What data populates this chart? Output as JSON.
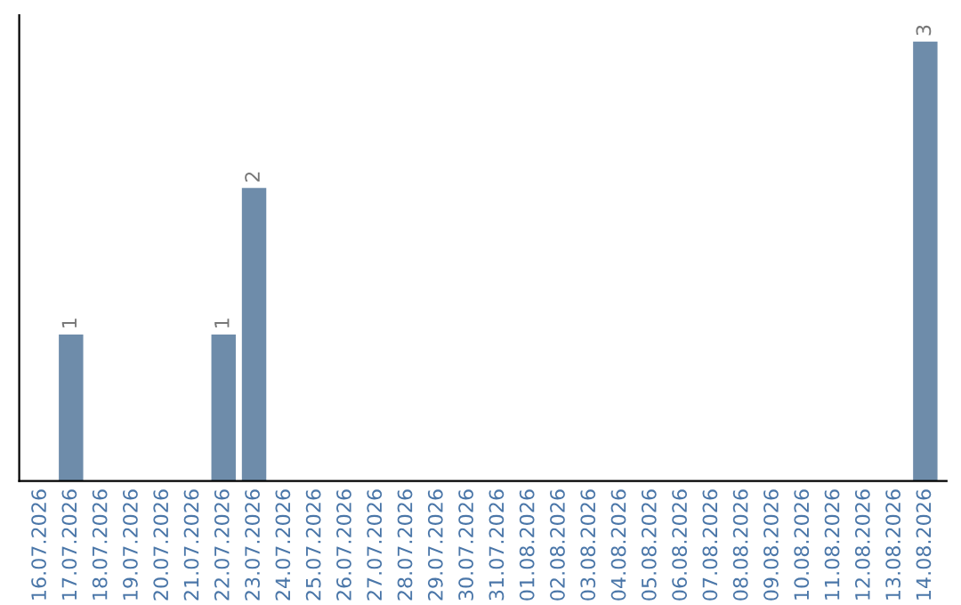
{
  "chart_data": {
    "type": "bar",
    "categories": [
      "16.07.2026",
      "17.07.2026",
      "18.07.2026",
      "19.07.2026",
      "20.07.2026",
      "21.07.2026",
      "22.07.2026",
      "23.07.2026",
      "24.07.2026",
      "25.07.2026",
      "26.07.2026",
      "27.07.2026",
      "28.07.2026",
      "29.07.2026",
      "30.07.2026",
      "31.07.2026",
      "01.08.2026",
      "02.08.2026",
      "03.08.2026",
      "04.08.2026",
      "05.08.2026",
      "06.08.2026",
      "07.08.2026",
      "08.08.2026",
      "09.08.2026",
      "10.08.2026",
      "11.08.2026",
      "12.08.2026",
      "13.08.2026",
      "14.08.2026"
    ],
    "values": [
      0,
      1,
      0,
      0,
      0,
      0,
      1,
      2,
      0,
      0,
      0,
      0,
      0,
      0,
      0,
      0,
      0,
      0,
      0,
      0,
      0,
      0,
      0,
      0,
      0,
      0,
      0,
      0,
      0,
      3
    ],
    "value_labels": [
      null,
      "1",
      null,
      null,
      null,
      null,
      "1",
      "2",
      null,
      null,
      null,
      null,
      null,
      null,
      null,
      null,
      null,
      null,
      null,
      null,
      null,
      null,
      null,
      null,
      null,
      null,
      null,
      null,
      null,
      "3"
    ],
    "color": "#6e8caa",
    "tick_labels": "x",
    "grid": false,
    "legend": false
  }
}
